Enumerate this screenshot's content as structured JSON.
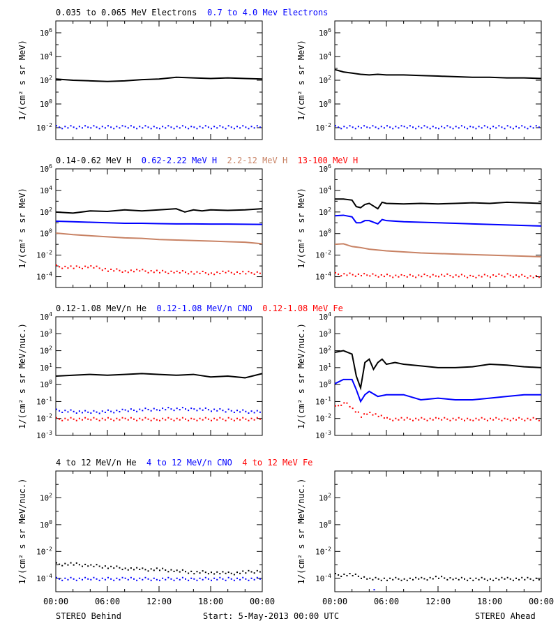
{
  "colors": {
    "black": "#000000",
    "blue": "#0000ff",
    "tan": "#c88264",
    "red": "#ff0000"
  },
  "footer": {
    "left": "STEREO Behind",
    "center": "Start:  5-May-2013 00:00 UTC",
    "right": "STEREO Ahead"
  },
  "chart_data": [
    {
      "type": "scatter",
      "ylabel": "1/(cm² s sr MeV)",
      "log_y": true,
      "ylim_log10": [
        -3,
        7
      ],
      "ytick_exps": [
        -2,
        0,
        2,
        4,
        6
      ],
      "xlim": [
        "00:00",
        "24:00"
      ],
      "xtick_labels": [
        "00:00",
        "06:00",
        "12:00",
        "18:00",
        "00:00"
      ],
      "legend": [
        {
          "label": "0.035 to 0.065 MeV Electrons",
          "color": "black"
        },
        {
          "label": "0.7 to 4.0 Mev Electrons",
          "color": "blue"
        }
      ],
      "panels": [
        {
          "side": "STEREO Behind",
          "series": [
            {
              "color": "black",
              "style": "line",
              "x_hours": [
                0,
                2,
                4,
                6,
                8,
                10,
                12,
                14,
                16,
                18,
                20,
                22,
                24
              ],
              "log10_y": [
                2.1,
                2.0,
                1.95,
                1.9,
                1.95,
                2.05,
                2.1,
                2.25,
                2.2,
                2.15,
                2.2,
                2.15,
                2.1
              ]
            },
            {
              "color": "blue",
              "style": "dots",
              "x_hours": [
                0,
                4,
                8,
                12,
                16,
                20,
                24
              ],
              "log10_y": [
                -1.9,
                -1.9,
                -1.9,
                -1.9,
                -1.9,
                -1.9,
                -1.9
              ]
            }
          ]
        },
        {
          "side": "STEREO Ahead",
          "series": [
            {
              "color": "black",
              "style": "line",
              "x_hours": [
                0,
                0.5,
                1,
                2,
                3,
                4,
                5,
                6,
                8,
                10,
                12,
                14,
                16,
                18,
                20,
                22,
                24
              ],
              "log10_y": [
                2.9,
                2.8,
                2.7,
                2.6,
                2.5,
                2.45,
                2.5,
                2.45,
                2.45,
                2.4,
                2.35,
                2.3,
                2.25,
                2.25,
                2.2,
                2.2,
                2.15
              ]
            },
            {
              "color": "blue",
              "style": "dots",
              "x_hours": [
                0,
                4,
                8,
                12,
                16,
                20,
                24
              ],
              "log10_y": [
                -1.9,
                -1.9,
                -1.9,
                -1.9,
                -1.9,
                -1.9,
                -1.9
              ]
            }
          ]
        }
      ]
    },
    {
      "type": "scatter",
      "ylabel": "1/(cm² s sr MeV)",
      "log_y": true,
      "ylim_log10": [
        -5,
        6
      ],
      "ytick_exps": [
        -4,
        -2,
        0,
        2,
        4,
        6
      ],
      "xlim": [
        "00:00",
        "24:00"
      ],
      "xtick_labels": [
        "00:00",
        "06:00",
        "12:00",
        "18:00",
        "00:00"
      ],
      "legend": [
        {
          "label": "0.14-0.62 MeV H",
          "color": "black"
        },
        {
          "label": "0.62-2.22 MeV H",
          "color": "blue"
        },
        {
          "label": "2.2-12 MeV H",
          "color": "tan"
        },
        {
          "label": "13-100 MeV H",
          "color": "red"
        }
      ],
      "panels": [
        {
          "side": "STEREO Behind",
          "series": [
            {
              "color": "black",
              "style": "line",
              "x_hours": [
                0,
                2,
                4,
                6,
                8,
                10,
                12,
                14,
                15,
                16,
                17,
                18,
                20,
                22,
                24
              ],
              "log10_y": [
                2.0,
                1.9,
                2.1,
                2.05,
                2.2,
                2.1,
                2.2,
                2.3,
                2.0,
                2.2,
                2.1,
                2.2,
                2.15,
                2.2,
                2.3
              ]
            },
            {
              "color": "blue",
              "style": "line",
              "x_hours": [
                0,
                2,
                4,
                6,
                8,
                10,
                12,
                14,
                16,
                18,
                20,
                22,
                24
              ],
              "log10_y": [
                1.15,
                1.1,
                1.05,
                1.0,
                0.95,
                0.95,
                0.92,
                0.9,
                0.9,
                0.88,
                0.88,
                0.86,
                0.85
              ]
            },
            {
              "color": "tan",
              "style": "line",
              "x_hours": [
                0,
                2,
                4,
                6,
                8,
                10,
                12,
                14,
                16,
                18,
                20,
                22,
                24
              ],
              "log10_y": [
                0.05,
                -0.1,
                -0.2,
                -0.3,
                -0.4,
                -0.45,
                -0.55,
                -0.6,
                -0.65,
                -0.7,
                -0.75,
                -0.8,
                -0.95
              ]
            },
            {
              "color": "red",
              "style": "dots",
              "x_hours": [
                0,
                2,
                4,
                6,
                8,
                10,
                12,
                14,
                16,
                18,
                20,
                22,
                24
              ],
              "log10_y": [
                -3.0,
                -3.1,
                -3.0,
                -3.3,
                -3.4,
                -3.4,
                -3.5,
                -3.5,
                -3.55,
                -3.6,
                -3.55,
                -3.6,
                -3.55
              ]
            }
          ]
        },
        {
          "side": "STEREO Ahead",
          "series": [
            {
              "color": "black",
              "style": "line",
              "x_hours": [
                0,
                1,
                2,
                2.5,
                3,
                3.5,
                4,
                5,
                5.5,
                6,
                8,
                10,
                12,
                14,
                16,
                18,
                20,
                22,
                24
              ],
              "log10_y": [
                3.2,
                3.2,
                3.1,
                2.5,
                2.4,
                2.7,
                2.8,
                2.3,
                2.9,
                2.8,
                2.75,
                2.8,
                2.75,
                2.8,
                2.85,
                2.8,
                2.9,
                2.85,
                2.8
              ]
            },
            {
              "color": "blue",
              "style": "line",
              "x_hours": [
                0,
                1,
                2,
                2.5,
                3,
                3.5,
                4,
                5,
                5.5,
                6,
                8,
                10,
                12,
                14,
                16,
                18,
                20,
                22,
                24
              ],
              "log10_y": [
                1.65,
                1.7,
                1.55,
                1.0,
                1.0,
                1.2,
                1.2,
                0.9,
                1.3,
                1.2,
                1.1,
                1.05,
                1.0,
                0.95,
                0.9,
                0.85,
                0.8,
                0.75,
                0.7
              ]
            },
            {
              "color": "tan",
              "style": "line",
              "x_hours": [
                0,
                1,
                2,
                3,
                4,
                6,
                8,
                10,
                12,
                14,
                16,
                18,
                20,
                22,
                24
              ],
              "log10_y": [
                -1.0,
                -0.95,
                -1.2,
                -1.3,
                -1.45,
                -1.6,
                -1.7,
                -1.8,
                -1.85,
                -1.9,
                -1.95,
                -2.0,
                -2.05,
                -2.1,
                -2.15
              ]
            },
            {
              "color": "red",
              "style": "dots",
              "x_hours": [
                0,
                4,
                8,
                12,
                16,
                20,
                24
              ],
              "log10_y": [
                -3.7,
                -3.8,
                -3.9,
                -3.8,
                -3.9,
                -3.8,
                -4.0
              ]
            }
          ]
        }
      ]
    },
    {
      "type": "scatter",
      "ylabel": "1/(cm² s sr MeV/nuc.)",
      "log_y": true,
      "ylim_log10": [
        -3,
        4
      ],
      "ytick_exps": [
        -3,
        -2,
        -1,
        0,
        1,
        2,
        3,
        4
      ],
      "xlim": [
        "00:00",
        "24:00"
      ],
      "xtick_labels": [
        "00:00",
        "06:00",
        "12:00",
        "18:00",
        "00:00"
      ],
      "legend": [
        {
          "label": "0.12-1.08 MeV/n He",
          "color": "black"
        },
        {
          "label": "0.12-1.08 MeV/n CNO",
          "color": "blue"
        },
        {
          "label": "0.12-1.08 MeV Fe",
          "color": "red"
        }
      ],
      "panels": [
        {
          "side": "STEREO Behind",
          "series": [
            {
              "color": "black",
              "style": "line",
              "x_hours": [
                0,
                2,
                4,
                6,
                8,
                10,
                12,
                14,
                16,
                18,
                20,
                22,
                24
              ],
              "log10_y": [
                0.5,
                0.55,
                0.6,
                0.55,
                0.6,
                0.65,
                0.6,
                0.55,
                0.6,
                0.45,
                0.5,
                0.4,
                0.65
              ]
            },
            {
              "color": "blue",
              "style": "dots",
              "x_hours": [
                0,
                4,
                8,
                12,
                16,
                20,
                24
              ],
              "log10_y": [
                -1.5,
                -1.6,
                -1.5,
                -1.4,
                -1.4,
                -1.5,
                -1.6
              ]
            },
            {
              "color": "red",
              "style": "dots",
              "x_hours": [
                0,
                4,
                8,
                12,
                16,
                20,
                24
              ],
              "log10_y": [
                -2.0,
                -2.0,
                -2.0,
                -2.0,
                -2.0,
                -2.0,
                -2.0
              ]
            }
          ]
        },
        {
          "side": "STEREO Ahead",
          "series": [
            {
              "color": "black",
              "style": "line",
              "x_hours": [
                0,
                1,
                2,
                2.5,
                3,
                3.5,
                4,
                4.5,
                5,
                5.5,
                6,
                7,
                8,
                10,
                12,
                14,
                16,
                18,
                20,
                22,
                24
              ],
              "log10_y": [
                1.9,
                2.0,
                1.8,
                0.5,
                -0.2,
                1.3,
                1.5,
                0.9,
                1.3,
                1.5,
                1.2,
                1.3,
                1.2,
                1.1,
                1.0,
                1.0,
                1.05,
                1.2,
                1.15,
                1.05,
                1.0
              ]
            },
            {
              "color": "blue",
              "style": "line",
              "x_hours": [
                0,
                1,
                2,
                2.5,
                3,
                3.5,
                4,
                5,
                6,
                8,
                10,
                12,
                14,
                16,
                18,
                20,
                22,
                24
              ],
              "log10_y": [
                0.05,
                0.3,
                0.3,
                -0.3,
                -1.0,
                -0.6,
                -0.4,
                -0.7,
                -0.6,
                -0.6,
                -0.9,
                -0.8,
                -0.9,
                -0.9,
                -0.8,
                -0.7,
                -0.6,
                -0.6
              ]
            },
            {
              "color": "red",
              "style": "dots",
              "x_hours": [
                0,
                1,
                2,
                3,
                4,
                6,
                8,
                12,
                16,
                20,
                24
              ],
              "log10_y": [
                -1.3,
                -1.0,
                -1.4,
                -1.8,
                -1.6,
                -2.0,
                -2.0,
                -2.0,
                -2.0,
                -2.0,
                -2.0
              ]
            }
          ]
        }
      ]
    },
    {
      "type": "scatter",
      "ylabel": "1/(cm² s sr MeV/nuc.)",
      "log_y": true,
      "ylim_log10": [
        -5,
        4
      ],
      "ytick_exps": [
        -4,
        -2,
        0,
        2
      ],
      "xlim": [
        "00:00",
        "24:00"
      ],
      "xtick_labels": [
        "00:00",
        "06:00",
        "12:00",
        "18:00",
        "00:00"
      ],
      "legend": [
        {
          "label": "4 to 12 MeV/n He",
          "color": "black"
        },
        {
          "label": "4 to 12 MeV/n CNO",
          "color": "blue"
        },
        {
          "label": "4 to 12 MeV Fe",
          "color": "red"
        }
      ],
      "panels": [
        {
          "side": "STEREO Behind",
          "series": [
            {
              "color": "black",
              "style": "dots",
              "x_hours": [
                0,
                2,
                4,
                6,
                8,
                10,
                12,
                14,
                16,
                18,
                20,
                22,
                24
              ],
              "log10_y": [
                -2.9,
                -2.9,
                -3.0,
                -3.1,
                -3.2,
                -3.3,
                -3.3,
                -3.4,
                -3.5,
                -3.5,
                -3.6,
                -3.5,
                -3.4
              ]
            },
            {
              "color": "blue",
              "style": "dots",
              "x_hours": [
                0,
                4,
                8,
                12,
                16,
                20,
                24
              ],
              "log10_y": [
                -4.0,
                -4.0,
                -4.0,
                -4.0,
                -4.0,
                -4.0,
                -4.0
              ]
            }
          ]
        },
        {
          "side": "STEREO Ahead",
          "series": [
            {
              "color": "black",
              "style": "dots",
              "x_hours": [
                0,
                2,
                4,
                6,
                8,
                10,
                12,
                14,
                16,
                18,
                20,
                22,
                24
              ],
              "log10_y": [
                -3.7,
                -3.7,
                -4.0,
                -4.0,
                -4.0,
                -4.0,
                -3.9,
                -4.0,
                -4.0,
                -4.0,
                -4.0,
                -4.0,
                -4.0
              ]
            },
            {
              "color": "blue",
              "style": "dots",
              "x_hours": [
                4.5
              ],
              "log10_y": [
                -4.8
              ]
            }
          ]
        }
      ]
    }
  ]
}
